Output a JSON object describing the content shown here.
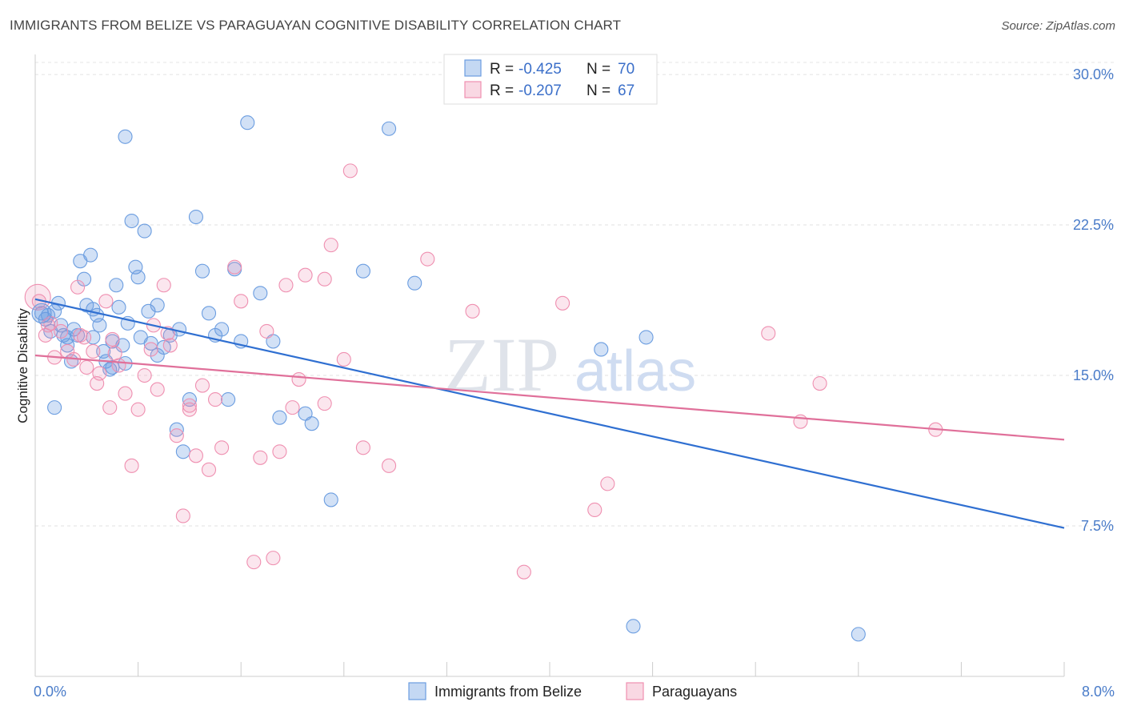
{
  "header": {
    "title": "IMMIGRANTS FROM BELIZE VS PARAGUAYAN COGNITIVE DISABILITY CORRELATION CHART",
    "source": "Source: ZipAtlas.com"
  },
  "watermark": {
    "zip": "ZIP",
    "atlas": "atlas"
  },
  "legend": {
    "r_label": "R =",
    "n_label": "N =",
    "entries": [
      {
        "r": "-0.425",
        "n": "70",
        "color": "#6b9de0"
      },
      {
        "r": "-0.207",
        "n": "67",
        "color": "#ef8fb0"
      }
    ]
  },
  "chart_data": {
    "type": "scatter",
    "title": "IMMIGRANTS FROM BELIZE VS PARAGUAYAN COGNITIVE DISABILITY CORRELATION CHART",
    "xlabel": "",
    "ylabel": "Cognitive Disability",
    "xlim": [
      0,
      8
    ],
    "ylim": [
      0,
      31
    ],
    "x_tick_labels": [
      "0.0%",
      "8.0%"
    ],
    "y_ticks": [
      7.5,
      15.0,
      22.5,
      30.0
    ],
    "y_tick_labels": [
      "7.5%",
      "15.0%",
      "22.5%",
      "30.0%"
    ],
    "grid": "horizontal dashed",
    "legend_placement": "top-center",
    "series": [
      {
        "name": "Immigrants from Belize",
        "color": "#6b9de0",
        "trend": {
          "x": [
            0.0,
            8.0
          ],
          "y": [
            18.8,
            7.4
          ]
        },
        "points": [
          [
            0.05,
            18.1
          ],
          [
            0.08,
            17.8
          ],
          [
            0.1,
            18.0
          ],
          [
            0.12,
            17.2
          ],
          [
            0.15,
            18.2
          ],
          [
            0.18,
            18.6
          ],
          [
            0.2,
            17.5
          ],
          [
            0.22,
            17.0
          ],
          [
            0.25,
            16.5
          ],
          [
            0.28,
            15.7
          ],
          [
            0.3,
            17.3
          ],
          [
            0.33,
            17.0
          ],
          [
            0.35,
            20.7
          ],
          [
            0.38,
            19.8
          ],
          [
            0.4,
            18.5
          ],
          [
            0.43,
            21.0
          ],
          [
            0.45,
            16.9
          ],
          [
            0.48,
            18.0
          ],
          [
            0.5,
            17.5
          ],
          [
            0.53,
            16.2
          ],
          [
            0.55,
            15.7
          ],
          [
            0.58,
            15.3
          ],
          [
            0.6,
            16.7
          ],
          [
            0.63,
            19.5
          ],
          [
            0.65,
            18.4
          ],
          [
            0.68,
            16.5
          ],
          [
            0.7,
            26.9
          ],
          [
            0.72,
            17.6
          ],
          [
            0.75,
            22.7
          ],
          [
            0.78,
            20.4
          ],
          [
            0.8,
            19.9
          ],
          [
            0.82,
            16.9
          ],
          [
            0.85,
            22.2
          ],
          [
            0.88,
            18.2
          ],
          [
            0.9,
            16.6
          ],
          [
            0.95,
            16.0
          ],
          [
            1.0,
            16.4
          ],
          [
            1.05,
            17.0
          ],
          [
            1.1,
            12.3
          ],
          [
            1.12,
            17.3
          ],
          [
            1.15,
            11.2
          ],
          [
            1.2,
            13.8
          ],
          [
            1.25,
            22.9
          ],
          [
            1.3,
            20.2
          ],
          [
            1.35,
            18.1
          ],
          [
            1.4,
            17.0
          ],
          [
            1.5,
            13.8
          ],
          [
            1.55,
            20.3
          ],
          [
            1.6,
            16.7
          ],
          [
            1.65,
            27.6
          ],
          [
            1.75,
            19.1
          ],
          [
            1.85,
            16.7
          ],
          [
            1.9,
            12.9
          ],
          [
            2.1,
            13.1
          ],
          [
            2.15,
            12.6
          ],
          [
            2.3,
            8.8
          ],
          [
            2.55,
            20.2
          ],
          [
            2.75,
            27.3
          ],
          [
            2.95,
            19.6
          ],
          [
            4.4,
            16.3
          ],
          [
            4.75,
            16.9
          ],
          [
            4.65,
            2.5
          ],
          [
            6.4,
            2.1
          ],
          [
            0.15,
            13.4
          ],
          [
            0.6,
            15.4
          ],
          [
            0.95,
            18.5
          ],
          [
            1.45,
            17.3
          ],
          [
            0.25,
            16.9
          ],
          [
            0.45,
            18.3
          ],
          [
            0.7,
            15.6
          ]
        ]
      },
      {
        "name": "Paraguayans",
        "color": "#ef8fb0",
        "trend": {
          "x": [
            0.0,
            8.0
          ],
          "y": [
            16.0,
            11.8
          ]
        },
        "points": [
          [
            0.03,
            18.7
          ],
          [
            0.08,
            17.0
          ],
          [
            0.12,
            17.6
          ],
          [
            0.15,
            15.9
          ],
          [
            0.2,
            17.2
          ],
          [
            0.25,
            16.2
          ],
          [
            0.3,
            15.8
          ],
          [
            0.33,
            19.4
          ],
          [
            0.35,
            17.0
          ],
          [
            0.4,
            15.4
          ],
          [
            0.45,
            16.2
          ],
          [
            0.48,
            14.6
          ],
          [
            0.5,
            15.1
          ],
          [
            0.55,
            18.7
          ],
          [
            0.58,
            13.4
          ],
          [
            0.62,
            16.1
          ],
          [
            0.65,
            15.5
          ],
          [
            0.7,
            14.1
          ],
          [
            0.75,
            10.5
          ],
          [
            0.8,
            13.3
          ],
          [
            0.85,
            15.0
          ],
          [
            0.9,
            16.3
          ],
          [
            0.95,
            14.3
          ],
          [
            1.0,
            19.5
          ],
          [
            1.03,
            17.1
          ],
          [
            1.05,
            16.5
          ],
          [
            1.1,
            12.0
          ],
          [
            1.15,
            8.0
          ],
          [
            1.2,
            13.5
          ],
          [
            1.25,
            11.0
          ],
          [
            1.3,
            14.5
          ],
          [
            1.35,
            10.3
          ],
          [
            1.4,
            13.8
          ],
          [
            1.45,
            11.4
          ],
          [
            1.55,
            20.4
          ],
          [
            1.6,
            18.7
          ],
          [
            1.7,
            5.7
          ],
          [
            1.75,
            10.9
          ],
          [
            1.8,
            17.2
          ],
          [
            1.85,
            5.9
          ],
          [
            1.9,
            11.2
          ],
          [
            1.95,
            19.5
          ],
          [
            2.0,
            13.4
          ],
          [
            2.05,
            14.8
          ],
          [
            2.1,
            20.0
          ],
          [
            2.25,
            19.8
          ],
          [
            2.3,
            21.5
          ],
          [
            2.4,
            15.8
          ],
          [
            2.45,
            25.2
          ],
          [
            2.55,
            11.4
          ],
          [
            2.75,
            10.5
          ],
          [
            3.05,
            20.8
          ],
          [
            3.4,
            18.2
          ],
          [
            3.8,
            5.2
          ],
          [
            4.1,
            18.6
          ],
          [
            4.35,
            8.3
          ],
          [
            4.45,
            9.6
          ],
          [
            5.7,
            17.1
          ],
          [
            5.95,
            12.7
          ],
          [
            6.1,
            14.6
          ],
          [
            7.0,
            12.3
          ],
          [
            0.1,
            17.5
          ],
          [
            0.38,
            16.9
          ],
          [
            0.6,
            16.8
          ],
          [
            0.92,
            17.5
          ],
          [
            1.2,
            13.3
          ],
          [
            2.25,
            13.6
          ]
        ]
      }
    ]
  }
}
